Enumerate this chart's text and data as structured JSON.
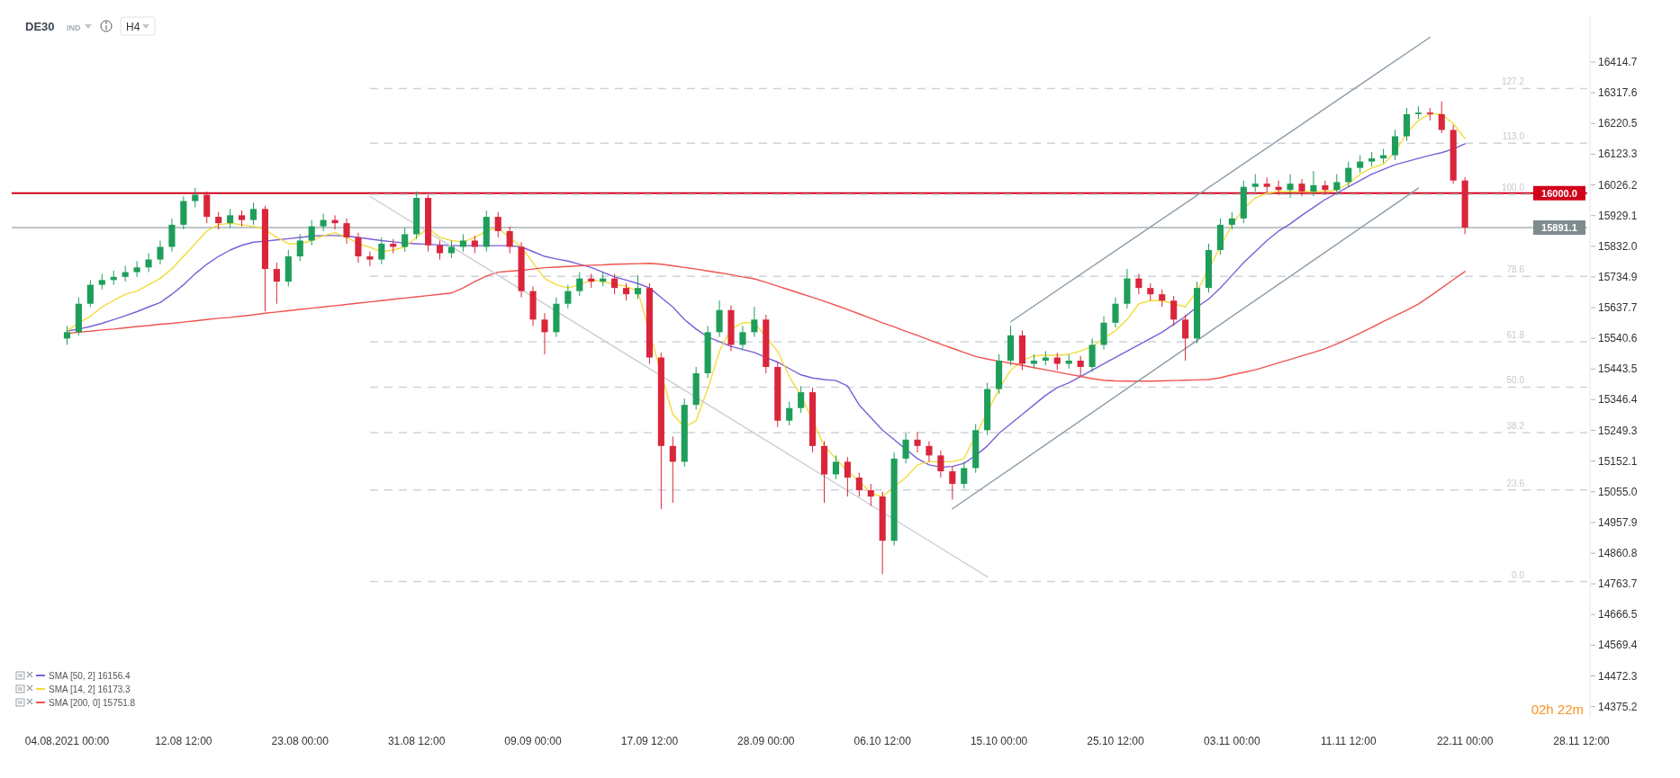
{
  "chart_data": {
    "type": "candlestick",
    "title": "DE30",
    "annotations": [
      "IND",
      "H4",
      "02h 22m",
      {
        "text": "0.0",
        "y": 14771
      },
      {
        "text": "23.6",
        "y": 15061
      },
      {
        "text": "38.2",
        "y": 15242
      },
      {
        "text": "50.0",
        "y": 15386
      },
      {
        "text": "61.8",
        "y": 15530
      },
      {
        "text": "78.6",
        "y": 15737
      },
      {
        "text": "100.0",
        "y": 15996
      },
      {
        "text": "113.0",
        "y": 16158
      },
      {
        "text": "127.2",
        "y": 16331
      }
    ],
    "categories": [
      "04.08.2021 00:00",
      null,
      null,
      null,
      null,
      null,
      null,
      null,
      null,
      null,
      "12.08 12:00",
      null,
      null,
      null,
      null,
      null,
      null,
      null,
      null,
      null,
      "23.08 00:00",
      null,
      null,
      null,
      null,
      null,
      null,
      null,
      null,
      null,
      "31.08 12:00",
      null,
      null,
      null,
      null,
      null,
      null,
      null,
      null,
      null,
      "09.09 00:00",
      null,
      null,
      null,
      null,
      null,
      null,
      null,
      null,
      null,
      "17.09 12:00",
      null,
      null,
      null,
      null,
      null,
      null,
      null,
      null,
      null,
      "28.09 00:00",
      null,
      null,
      null,
      null,
      null,
      null,
      null,
      null,
      null,
      "06.10 12:00",
      null,
      null,
      null,
      null,
      null,
      null,
      null,
      null,
      null,
      "15.10 00:00",
      null,
      null,
      null,
      null,
      null,
      null,
      null,
      null,
      null,
      "25.10 12:00",
      null,
      null,
      null,
      null,
      null,
      null,
      null,
      null,
      null,
      "03.11 00:00",
      null,
      null,
      null,
      null,
      null,
      null,
      null,
      null,
      null,
      "11.11 12:00",
      null,
      null,
      null,
      null,
      null,
      null,
      null,
      null,
      null,
      "22.11 00:00",
      null,
      null,
      null,
      null,
      null,
      null,
      null,
      null,
      null,
      "28.11 12:00"
    ],
    "ohlc": [
      [
        15540,
        15580,
        15520,
        15560
      ],
      [
        15560,
        15670,
        15550,
        15650
      ],
      [
        15650,
        15725,
        15640,
        15710
      ],
      [
        15710,
        15745,
        15695,
        15725
      ],
      [
        15725,
        15755,
        15710,
        15735
      ],
      [
        15735,
        15770,
        15720,
        15750
      ],
      [
        15750,
        15785,
        15735,
        15765
      ],
      [
        15765,
        15810,
        15750,
        15790
      ],
      [
        15790,
        15850,
        15775,
        15830
      ],
      [
        15830,
        15920,
        15815,
        15900
      ],
      [
        15900,
        15990,
        15885,
        15975
      ],
      [
        15975,
        16017,
        15955,
        15995
      ],
      [
        15995,
        16005,
        15905,
        15925
      ],
      [
        15925,
        15940,
        15885,
        15905
      ],
      [
        15905,
        15950,
        15890,
        15930
      ],
      [
        15930,
        15945,
        15895,
        15915
      ],
      [
        15915,
        15970,
        15900,
        15950
      ],
      [
        15950,
        15960,
        15626,
        15760
      ],
      [
        15760,
        15780,
        15650,
        15720
      ],
      [
        15720,
        15820,
        15705,
        15800
      ],
      [
        15800,
        15870,
        15785,
        15850
      ],
      [
        15850,
        15915,
        15835,
        15895
      ],
      [
        15895,
        15935,
        15880,
        15915
      ],
      [
        15915,
        15930,
        15885,
        15905
      ],
      [
        15905,
        15920,
        15840,
        15860
      ],
      [
        15860,
        15875,
        15780,
        15800
      ],
      [
        15800,
        15815,
        15770,
        15790
      ],
      [
        15790,
        15860,
        15775,
        15840
      ],
      [
        15840,
        15855,
        15810,
        15830
      ],
      [
        15830,
        15890,
        15815,
        15870
      ],
      [
        15870,
        16005,
        15855,
        15985
      ],
      [
        15985,
        15995,
        15815,
        15835
      ],
      [
        15835,
        15850,
        15790,
        15810
      ],
      [
        15810,
        15850,
        15795,
        15830
      ],
      [
        15830,
        15870,
        15815,
        15850
      ],
      [
        15850,
        15865,
        15810,
        15830
      ],
      [
        15830,
        15945,
        15815,
        15925
      ],
      [
        15925,
        15940,
        15860,
        15880
      ],
      [
        15880,
        15895,
        15810,
        15830
      ],
      [
        15830,
        15845,
        15670,
        15690
      ],
      [
        15690,
        15705,
        15580,
        15600
      ],
      [
        15600,
        15620,
        15490,
        15560
      ],
      [
        15560,
        15670,
        15545,
        15650
      ],
      [
        15650,
        15710,
        15635,
        15690
      ],
      [
        15690,
        15750,
        15675,
        15730
      ],
      [
        15730,
        15745,
        15700,
        15720
      ],
      [
        15720,
        15750,
        15705,
        15730
      ],
      [
        15730,
        15745,
        15680,
        15700
      ],
      [
        15700,
        15715,
        15660,
        15680
      ],
      [
        15680,
        15740,
        15665,
        15700
      ],
      [
        15700,
        15715,
        15460,
        15480
      ],
      [
        15480,
        15495,
        15000,
        15200
      ],
      [
        15200,
        15230,
        15020,
        15150
      ],
      [
        15150,
        15350,
        15135,
        15330
      ],
      [
        15330,
        15450,
        15315,
        15430
      ],
      [
        15430,
        15580,
        15415,
        15560
      ],
      [
        15560,
        15660,
        15545,
        15630
      ],
      [
        15630,
        15645,
        15500,
        15520
      ],
      [
        15520,
        15580,
        15505,
        15560
      ],
      [
        15560,
        15640,
        15545,
        15600
      ],
      [
        15600,
        15615,
        15430,
        15450
      ],
      [
        15450,
        15465,
        15260,
        15280
      ],
      [
        15280,
        15340,
        15265,
        15320
      ],
      [
        15320,
        15390,
        15305,
        15370
      ],
      [
        15370,
        15385,
        15180,
        15200
      ],
      [
        15200,
        15215,
        15020,
        15110
      ],
      [
        15110,
        15170,
        15095,
        15150
      ],
      [
        15150,
        15165,
        15040,
        15100
      ],
      [
        15100,
        15115,
        15040,
        15060
      ],
      [
        15060,
        15080,
        15010,
        15040
      ],
      [
        15040,
        15055,
        14794,
        14900
      ],
      [
        14900,
        15180,
        14885,
        15160
      ],
      [
        15160,
        15240,
        15145,
        15220
      ],
      [
        15220,
        15245,
        15180,
        15200
      ],
      [
        15200,
        15215,
        15150,
        15170
      ],
      [
        15170,
        15185,
        15100,
        15120
      ],
      [
        15120,
        15135,
        15030,
        15080
      ],
      [
        15080,
        15150,
        15065,
        15130
      ],
      [
        15130,
        15270,
        15115,
        15250
      ],
      [
        15250,
        15400,
        15235,
        15380
      ],
      [
        15380,
        15490,
        15365,
        15470
      ],
      [
        15470,
        15580,
        15455,
        15550
      ],
      [
        15550,
        15565,
        15440,
        15460
      ],
      [
        15460,
        15490,
        15445,
        15470
      ],
      [
        15470,
        15500,
        15455,
        15480
      ],
      [
        15480,
        15495,
        15440,
        15460
      ],
      [
        15460,
        15490,
        15445,
        15470
      ],
      [
        15470,
        15485,
        15420,
        15450
      ],
      [
        15450,
        15540,
        15435,
        15520
      ],
      [
        15520,
        15610,
        15505,
        15590
      ],
      [
        15590,
        15670,
        15575,
        15650
      ],
      [
        15650,
        15760,
        15635,
        15730
      ],
      [
        15730,
        15745,
        15680,
        15700
      ],
      [
        15700,
        15715,
        15660,
        15680
      ],
      [
        15680,
        15695,
        15640,
        15660
      ],
      [
        15660,
        15675,
        15580,
        15600
      ],
      [
        15600,
        15615,
        15470,
        15540
      ],
      [
        15540,
        15720,
        15525,
        15700
      ],
      [
        15700,
        15840,
        15685,
        15820
      ],
      [
        15820,
        15920,
        15805,
        15900
      ],
      [
        15900,
        15940,
        15885,
        15920
      ],
      [
        15920,
        16040,
        15905,
        16020
      ],
      [
        16020,
        16060,
        16005,
        16030
      ],
      [
        16030,
        16050,
        16000,
        16020
      ],
      [
        16020,
        16040,
        15995,
        16010
      ],
      [
        16010,
        16060,
        15985,
        16030
      ],
      [
        16030,
        16045,
        15990,
        16005
      ],
      [
        16005,
        16070,
        15990,
        16025
      ],
      [
        16025,
        16040,
        15995,
        16010
      ],
      [
        16010,
        16060,
        15995,
        16035
      ],
      [
        16035,
        16100,
        16020,
        16080
      ],
      [
        16080,
        16120,
        16065,
        16100
      ],
      [
        16100,
        16130,
        16085,
        16110
      ],
      [
        16110,
        16140,
        16095,
        16120
      ],
      [
        16120,
        16200,
        16105,
        16180
      ],
      [
        16180,
        16270,
        16165,
        16250
      ],
      [
        16250,
        16275,
        16235,
        16255
      ],
      [
        16255,
        16270,
        16230,
        16250
      ],
      [
        16250,
        16290,
        16190,
        16200
      ],
      [
        16200,
        16215,
        16030,
        16040
      ],
      [
        16040,
        16050,
        15870,
        15891.1
      ],
      null,
      null,
      null,
      null,
      null,
      null,
      null,
      null,
      null,
      null
    ],
    "series": [
      {
        "type": "line",
        "name": "SMA [50, 2] 16156.4",
        "color": "#7b5fd6",
        "values": [
          15564,
          15570,
          15578,
          15588,
          15600,
          15612,
          15625,
          15640,
          15654,
          15680,
          15710,
          15745,
          15775,
          15800,
          15820,
          15835,
          15845,
          15848,
          15852,
          15856,
          15860,
          15864,
          15866,
          15866,
          15864,
          15860,
          15855,
          15850,
          15846,
          15842,
          15840,
          15838,
          15836,
          15834,
          15834,
          15834,
          15834,
          15834,
          15834,
          15830,
          15815,
          15800,
          15792,
          15785,
          15775,
          15765,
          15750,
          15735,
          15725,
          15714,
          15700,
          15670,
          15640,
          15600,
          15570,
          15545,
          15530,
          15515,
          15505,
          15496,
          15480,
          15465,
          15445,
          15425,
          15415,
          15410,
          15407,
          15390,
          15330,
          15290,
          15250,
          15220,
          15190,
          15160,
          15140,
          15133,
          15135,
          15145,
          15170,
          15200,
          15240,
          15270,
          15300,
          15330,
          15360,
          15385,
          15400,
          15420,
          15440,
          15460,
          15480,
          15500,
          15520,
          15540,
          15560,
          15585,
          15610,
          15640,
          15665,
          15700,
          15740,
          15780,
          15815,
          15850,
          15880,
          15903,
          15930,
          15955,
          15980,
          16000,
          16020,
          16040,
          16060,
          16075,
          16090,
          16100,
          16110,
          16120,
          16128,
          16140,
          16156,
          null,
          null,
          null,
          null,
          null,
          null,
          null,
          null,
          null,
          null
        ]
      },
      {
        "type": "line",
        "name": "SMA [14, 2] 16173.3",
        "color": "#f2dc3c",
        "values": [
          15564,
          15590,
          15610,
          15640,
          15660,
          15680,
          15690,
          15710,
          15730,
          15760,
          15800,
          15840,
          15880,
          15900,
          15905,
          15900,
          15895,
          15885,
          15860,
          15840,
          15840,
          15850,
          15865,
          15875,
          15860,
          15840,
          15828,
          15815,
          15820,
          15830,
          null,
          15890,
          15860,
          15850,
          15845,
          15860,
          15880,
          15890,
          15860,
          15830,
          15780,
          15730,
          15710,
          15700,
          15710,
          15725,
          15720,
          15712,
          15705,
          15690,
          null,
          null,
          15300,
          15260,
          15280,
          15380,
          15500,
          15570,
          15590,
          15590,
          null,
          15500,
          15420,
          15360,
          null,
          15200,
          15160,
          15120,
          15090,
          15050,
          15040,
          null,
          15100,
          15140,
          15150,
          15150,
          15150,
          15160,
          null,
          null,
          15380,
          15440,
          15470,
          15485,
          15487,
          15487,
          15490,
          15500,
          15515,
          null,
          15565,
          15600,
          15650,
          15660,
          15660,
          15650,
          15640,
          15690,
          null,
          15830,
          15900,
          15950,
          15985,
          16000,
          16005,
          16005,
          16005,
          16005,
          16005,
          16010,
          16030,
          16060,
          16080,
          16092,
          16130,
          16190,
          16230,
          16250,
          16250,
          16220,
          16173,
          null,
          null,
          null,
          null,
          null,
          null,
          null,
          null,
          null,
          null
        ]
      },
      {
        "type": "line",
        "name": "SMA [200, 0] 15751.8",
        "color": "#f0534f",
        "values": [
          15556,
          15560,
          15563,
          15567,
          15570,
          15574,
          15578,
          15581,
          15585,
          15588,
          15592,
          15596,
          15600,
          15604,
          15607,
          15611,
          15615,
          15620,
          15624,
          15628,
          15632,
          15636,
          15640,
          15644,
          15648,
          15652,
          15656,
          15660,
          15664,
          15668,
          15672,
          15676,
          15680,
          15684,
          15700,
          15720,
          15738,
          15750,
          15753,
          15756,
          15760,
          15764,
          15766,
          15768,
          15770,
          15772,
          15773,
          15775,
          15776,
          15777,
          15778,
          15775,
          15770,
          15765,
          15760,
          15754,
          15748,
          15742,
          15735,
          15729,
          15718,
          15706,
          15694,
          15682,
          15670,
          15658,
          15645,
          15632,
          15618,
          15604,
          15590,
          15577,
          15563,
          15550,
          15536,
          15522,
          15509,
          15496,
          15483,
          15475,
          15468,
          15462,
          15455,
          15448,
          15441,
          15434,
          15427,
          15420,
          15413,
          15408,
          15406,
          15405,
          15405,
          15405,
          15406,
          15407,
          15408,
          15409,
          15410,
          15416,
          15425,
          15433,
          15441,
          15452,
          15463,
          15474,
          15485,
          15496,
          15508,
          15523,
          15539,
          15557,
          15575,
          15594,
          15612,
          15630,
          15649,
          15674,
          15700,
          15726,
          15752,
          null,
          null,
          null,
          null,
          null,
          null,
          null,
          null,
          null,
          null
        ]
      },
      {
        "type": "line",
        "color": "#c9cfd5",
        "values": [
          null,
          null,
          null,
          null,
          null,
          null,
          null,
          null,
          null,
          null,
          null,
          null,
          null,
          null,
          null,
          null,
          null,
          null,
          null,
          null,
          null,
          null,
          null,
          null,
          null,
          null,
          15990,
          null,
          null,
          null,
          null,
          null,
          null,
          null,
          null,
          null,
          null,
          null,
          null,
          null,
          null,
          null,
          null,
          null,
          null,
          null,
          null,
          null,
          null,
          null,
          null,
          null,
          null,
          null,
          null,
          null,
          null,
          null,
          null,
          null,
          null,
          null,
          null,
          null,
          null,
          null,
          null,
          null,
          null,
          null,
          null,
          null,
          null,
          null,
          null,
          null,
          null,
          null,
          null,
          14786,
          null,
          null,
          null,
          null,
          null,
          null,
          null,
          null,
          null,
          null,
          null,
          null,
          null,
          null,
          null,
          null,
          null,
          null,
          null,
          null,
          null,
          null,
          null,
          null,
          null,
          null,
          null,
          null,
          null,
          null,
          null,
          null,
          null,
          null,
          null,
          null,
          null,
          null,
          null,
          null,
          null,
          null,
          null,
          null,
          null,
          null,
          null,
          null,
          null,
          null,
          null
        ]
      },
      {
        "type": "line",
        "color": "#8b9ba7",
        "values": [
          null,
          null,
          null,
          null,
          null,
          null,
          null,
          null,
          null,
          null,
          null,
          null,
          null,
          null,
          null,
          null,
          null,
          null,
          null,
          null,
          null,
          null,
          null,
          null,
          null,
          null,
          null,
          null,
          null,
          null,
          null,
          null,
          null,
          null,
          null,
          null,
          null,
          null,
          null,
          null,
          null,
          null,
          null,
          null,
          null,
          null,
          null,
          null,
          null,
          null,
          null,
          null,
          null,
          null,
          null,
          null,
          null,
          null,
          null,
          null,
          null,
          null,
          null,
          null,
          null,
          null,
          null,
          null,
          null,
          null,
          null,
          null,
          null,
          null,
          null,
          null,
          null,
          null,
          null,
          null,
          null,
          15593,
          null,
          null,
          null,
          null,
          null,
          null,
          null,
          null,
          null,
          null,
          null,
          null,
          null,
          null,
          null,
          null,
          null,
          null,
          null,
          null,
          null,
          null,
          null,
          null,
          null,
          null,
          null,
          null,
          null,
          null,
          null,
          null,
          null,
          null,
          null,
          16493,
          null,
          null,
          null,
          null,
          null,
          null,
          null,
          null,
          null,
          null,
          null,
          null,
          null
        ]
      },
      {
        "type": "line",
        "color": "#8b9ba7",
        "values": [
          null,
          null,
          null,
          null,
          null,
          null,
          null,
          null,
          null,
          null,
          null,
          null,
          null,
          null,
          null,
          null,
          null,
          null,
          null,
          null,
          null,
          null,
          null,
          null,
          null,
          null,
          null,
          null,
          null,
          null,
          null,
          null,
          null,
          null,
          null,
          null,
          null,
          null,
          null,
          null,
          null,
          null,
          null,
          null,
          null,
          null,
          null,
          null,
          null,
          null,
          null,
          null,
          null,
          null,
          null,
          null,
          null,
          null,
          null,
          null,
          null,
          null,
          null,
          null,
          null,
          null,
          null,
          null,
          null,
          null,
          null,
          null,
          null,
          null,
          null,
          null,
          15001,
          null,
          null,
          null,
          null,
          null,
          null,
          null,
          null,
          null,
          null,
          null,
          null,
          null,
          null,
          null,
          null,
          null,
          null,
          null,
          null,
          null,
          null,
          null,
          null,
          null,
          null,
          null,
          null,
          null,
          null,
          null,
          null,
          null,
          null,
          null,
          null,
          null,
          null,
          null,
          16016,
          null,
          null,
          null,
          null,
          null,
          null,
          null,
          null,
          null,
          null,
          null,
          null,
          null,
          null
        ]
      }
    ],
    "ylim": [
      14340,
      16560
    ],
    "yticks": [
      14375.2,
      14472.3,
      14569.4,
      14666.5,
      14763.7,
      14860.8,
      14957.9,
      {
        "value": 15055,
        "label": "15055.0"
      },
      15152.1,
      15249.3,
      15346.4,
      15443.5,
      15540.6,
      15637.7,
      15734.9,
      {
        "value": 15832,
        "label": "15832.0"
      },
      15929.1,
      16026.2,
      16123.3,
      16220.5,
      16317.6,
      16414.7
    ],
    "ref_lines": [
      {
        "axis": "y",
        "value": 16000,
        "label": "16000.0",
        "color": "#d0021b",
        "line_style": "solid"
      },
      {
        "axis": "y",
        "value": 15891.1,
        "label": "15891.1",
        "color": "#7f8c8d",
        "line_style": "solid"
      },
      {
        "axis": "y",
        "value": 14771,
        "color": "#cdd3d9",
        "line_style": "dashed"
      },
      {
        "axis": "y",
        "value": 15061,
        "color": "#cdd3d9",
        "line_style": "dashed"
      },
      {
        "axis": "y",
        "value": 15242,
        "color": "#cdd3d9",
        "line_style": "dashed"
      },
      {
        "axis": "y",
        "value": 15386,
        "color": "#cdd3d9",
        "line_style": "dashed"
      },
      {
        "axis": "y",
        "value": 15530,
        "color": "#cdd3d9",
        "line_style": "dashed"
      },
      {
        "axis": "y",
        "value": 15737,
        "color": "#cdd3d9",
        "line_style": "dashed"
      },
      {
        "axis": "y",
        "value": 15996,
        "color": "#cdd3d9",
        "line_style": "dashed"
      },
      {
        "axis": "y",
        "value": 16158,
        "color": "#cdd3d9",
        "line_style": "dashed"
      },
      {
        "axis": "y",
        "value": 16331,
        "color": "#cdd3d9",
        "line_style": "dashed"
      }
    ],
    "legend": "bottom left"
  }
}
